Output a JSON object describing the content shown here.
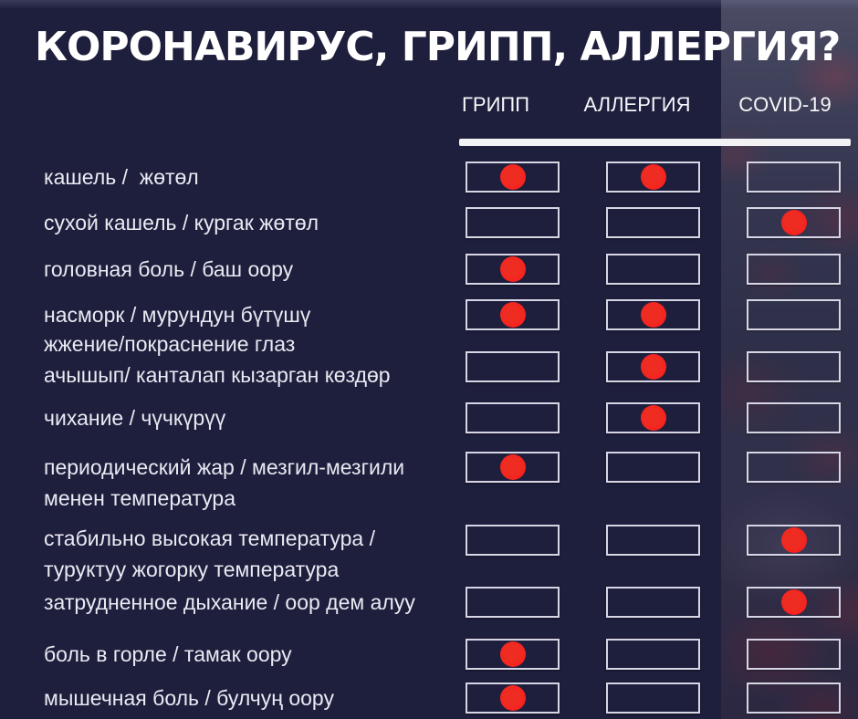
{
  "title": "КОРОНАВИРУС, ГРИПП, АЛЛЕРГИЯ?",
  "table": {
    "columns": [
      {
        "key": "gripp",
        "label": "ГРИПП"
      },
      {
        "key": "allergy",
        "label": "АЛЛЕРГИЯ"
      },
      {
        "key": "covid",
        "label": "COVID-19"
      }
    ],
    "rows": [
      {
        "label": "кашель /  жөтөл",
        "marks": {
          "gripp": true,
          "allergy": true,
          "covid": false
        }
      },
      {
        "label": "сухой кашель / кургак жөтөл",
        "marks": {
          "gripp": false,
          "allergy": false,
          "covid": true
        }
      },
      {
        "label": "головная боль / баш оору",
        "marks": {
          "gripp": true,
          "allergy": false,
          "covid": false
        }
      },
      {
        "label": "насморк / мурундун бүтүшү",
        "marks": {
          "gripp": true,
          "allergy": true,
          "covid": false
        }
      },
      {
        "label": "жжение/покраснение глаз\nачышып/ канталап кызарган көздөр",
        "marks": {
          "gripp": false,
          "allergy": true,
          "covid": false
        }
      },
      {
        "label": "чихание / чүчкүрүү",
        "marks": {
          "gripp": false,
          "allergy": true,
          "covid": false
        }
      },
      {
        "label": "периодический жар / мезгил-мезгили\nменен температура",
        "marks": {
          "gripp": true,
          "allergy": false,
          "covid": false
        }
      },
      {
        "label": "стабильно высокая температура /\nтуруктуу жогорку температура",
        "marks": {
          "gripp": false,
          "allergy": false,
          "covid": true
        }
      },
      {
        "label": "затрудненное дыхание / оор дем алуу",
        "marks": {
          "gripp": false,
          "allergy": false,
          "covid": true
        }
      },
      {
        "label": "боль в горле / тамак оору",
        "marks": {
          "gripp": true,
          "allergy": false,
          "covid": false
        }
      },
      {
        "label": "мышечная боль / булчуң оору",
        "marks": {
          "gripp": true,
          "allergy": false,
          "covid": false
        }
      }
    ]
  },
  "colors": {
    "bg": "#1e1e3d",
    "dot": "#f8211e",
    "cell_border": "#d6d6e4",
    "separator": "#f2f2f5",
    "label_text": "#e9eaf2",
    "title_text": "#ffffff"
  },
  "chart_data": {
    "type": "table",
    "title": "КОРОНАВИРУС, ГРИПП, АЛЛЕРГИЯ?",
    "columns": [
      "ГРИПП",
      "АЛЛЕРГИЯ",
      "COVID-19"
    ],
    "rows": [
      "кашель / жөтөл",
      "сухой кашель / кургак жөтөл",
      "головная боль / баш оору",
      "насморк / мурундун бүтүшү",
      "жжение/покраснение глаз ачышып/ канталап кызарган көздөр",
      "чихание / чүчкүрүү",
      "периодический жар / мезгил-мезгили менен температура",
      "стабильно высокая температура / туруктуу жогорку температура",
      "затрудненное дыхание / оор дем алуу",
      "боль в горле / тамак оору",
      "мышечная боль / булчуң оору"
    ],
    "matrix": [
      [
        1,
        1,
        0
      ],
      [
        0,
        0,
        1
      ],
      [
        1,
        0,
        0
      ],
      [
        1,
        1,
        0
      ],
      [
        0,
        1,
        0
      ],
      [
        0,
        1,
        0
      ],
      [
        1,
        0,
        0
      ],
      [
        0,
        0,
        1
      ],
      [
        0,
        0,
        1
      ],
      [
        1,
        0,
        0
      ],
      [
        1,
        0,
        0
      ]
    ],
    "legend": "1 = symptom typical (red dot), 0 = empty cell"
  }
}
